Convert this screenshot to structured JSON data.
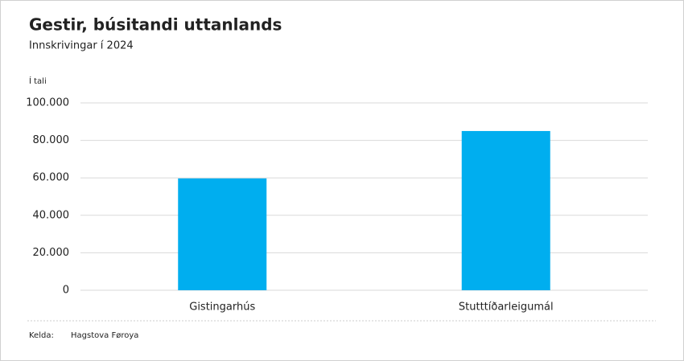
{
  "chart_data": {
    "type": "bar",
    "title": "Gestir, búsitandi uttanlands",
    "subtitle": "Innskrivingar í 2024",
    "y_axis_label": "Í tali",
    "categories": [
      "Gistingarhús",
      "Stutttíðarleigumál"
    ],
    "values": [
      59700,
      85000
    ],
    "color": "#00aeef",
    "ylim": [
      0,
      100000
    ],
    "yticks": [
      0,
      {
        "value": 20000,
        "label": "20.000"
      },
      {
        "value": 40000,
        "label": "40.000"
      },
      {
        "value": 60000,
        "label": "60.000"
      },
      {
        "value": 80000,
        "label": "80.000"
      },
      {
        "value": 100000,
        "label": "100.000"
      }
    ],
    "grid": true,
    "source_label": "Kelda:",
    "source": "Hagstova Føroya"
  }
}
